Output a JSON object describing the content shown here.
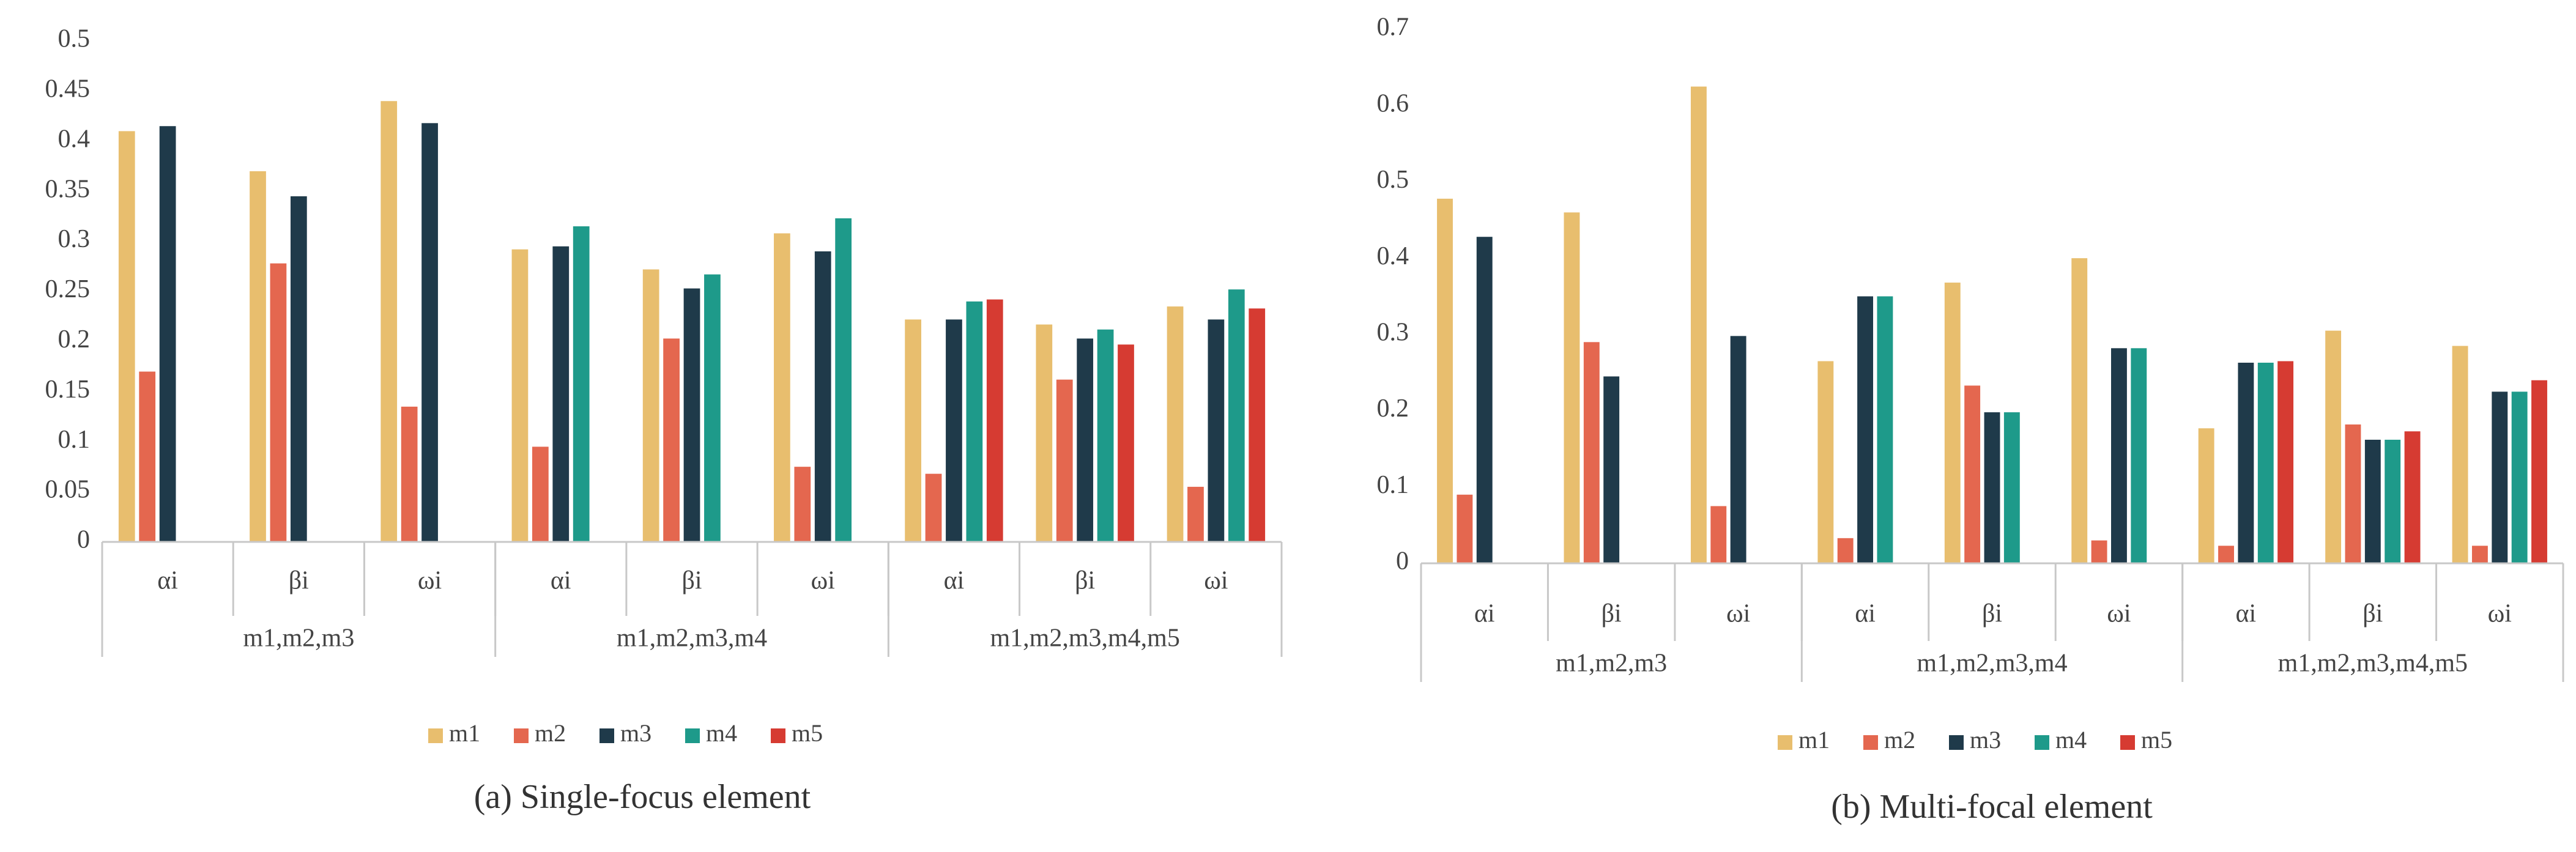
{
  "chart_data": [
    {
      "type": "bar",
      "title": "(a) Single-focus element",
      "categories": [
        "αi",
        "βi",
        "ωi",
        "αi",
        "βi",
        "ωi",
        "αi",
        "βi",
        "ωi"
      ],
      "category_groups": [
        "m1,m2,m3",
        "m1,m2,m3,m4",
        "m1,m2,m3,m4,m5"
      ],
      "series": [
        {
          "name": "m1",
          "color": "#e8be6e",
          "values": [
            0.41,
            0.37,
            0.44,
            0.292,
            0.272,
            0.308,
            0.222,
            0.217,
            0.235
          ]
        },
        {
          "name": "m2",
          "color": "#e4674f",
          "values": [
            0.17,
            0.278,
            0.135,
            0.095,
            0.203,
            0.075,
            0.068,
            0.162,
            0.055
          ]
        },
        {
          "name": "m3",
          "color": "#1f3a4a",
          "values": [
            0.415,
            0.345,
            0.418,
            0.295,
            0.253,
            0.29,
            0.222,
            0.203,
            0.222
          ]
        },
        {
          "name": "m4",
          "color": "#1e9a8a",
          "values": [
            null,
            null,
            null,
            0.315,
            0.267,
            0.323,
            0.24,
            0.212,
            0.252
          ]
        },
        {
          "name": "m5",
          "color": "#d63b32",
          "values": [
            null,
            null,
            null,
            null,
            null,
            null,
            0.242,
            0.197,
            0.233
          ]
        }
      ],
      "ylim": [
        0,
        0.5
      ],
      "yticks": [
        0,
        0.05,
        0.1,
        0.15,
        0.2,
        0.25,
        0.3,
        0.35,
        0.4,
        0.45,
        0.5
      ],
      "grid": false,
      "legend": "bottom"
    },
    {
      "type": "bar",
      "title": "(b) Multi-focal element",
      "categories": [
        "αi",
        "βi",
        "ωi",
        "αi",
        "βi",
        "ωi",
        "αi",
        "βi",
        "ωi"
      ],
      "category_groups": [
        "m1,m2,m3",
        "m1,m2,m3,m4",
        "m1,m2,m3,m4,m5"
      ],
      "series": [
        {
          "name": "m1",
          "color": "#e8be6e",
          "values": [
            0.478,
            0.46,
            0.625,
            0.265,
            0.368,
            0.4,
            0.177,
            0.305,
            0.285
          ]
        },
        {
          "name": "m2",
          "color": "#e4674f",
          "values": [
            0.09,
            0.29,
            0.075,
            0.033,
            0.233,
            0.03,
            0.023,
            0.182,
            0.023
          ]
        },
        {
          "name": "m3",
          "color": "#1f3a4a",
          "values": [
            0.428,
            0.245,
            0.298,
            0.35,
            0.198,
            0.282,
            0.263,
            0.162,
            0.225
          ]
        },
        {
          "name": "m4",
          "color": "#1e9a8a",
          "values": [
            null,
            null,
            null,
            0.35,
            0.198,
            0.282,
            0.263,
            0.162,
            0.225
          ]
        },
        {
          "name": "m5",
          "color": "#d63b32",
          "values": [
            null,
            null,
            null,
            null,
            null,
            null,
            0.265,
            0.173,
            0.24
          ]
        }
      ],
      "ylim": [
        0,
        0.7
      ],
      "yticks": [
        0,
        0.1,
        0.2,
        0.3,
        0.4,
        0.5,
        0.6,
        0.7
      ],
      "grid": false,
      "legend": "bottom"
    }
  ]
}
